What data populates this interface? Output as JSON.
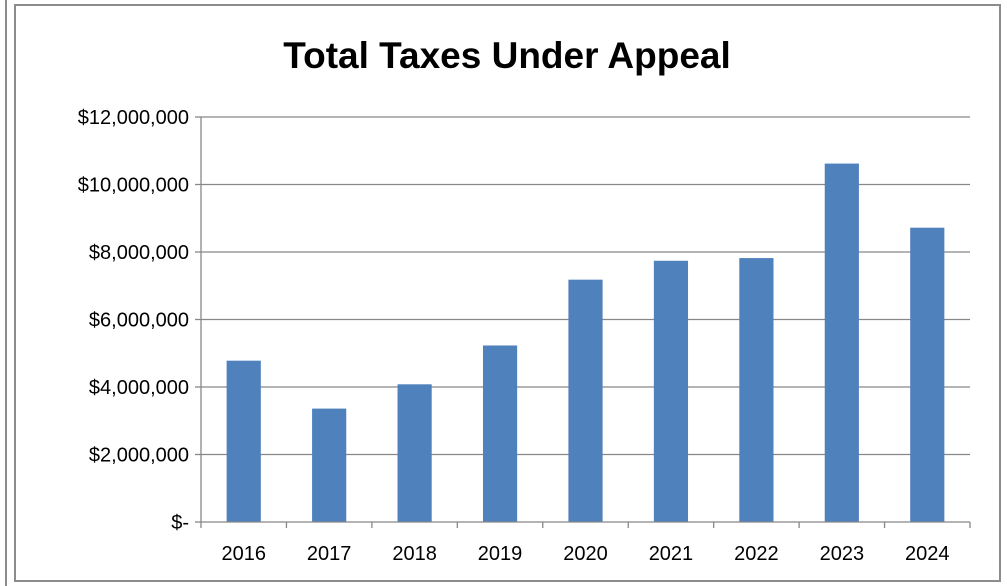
{
  "chart_data": {
    "type": "bar",
    "title": "Total Taxes Under Appeal",
    "xlabel": "",
    "ylabel": "",
    "categories": [
      "2016",
      "2017",
      "2018",
      "2019",
      "2020",
      "2021",
      "2022",
      "2023",
      "2024"
    ],
    "values": [
      4780000,
      3360000,
      4080000,
      5230000,
      7180000,
      7740000,
      7820000,
      10620000,
      8720000
    ],
    "ylim": [
      0,
      12000000
    ],
    "y_ticks": [
      0,
      2000000,
      4000000,
      6000000,
      8000000,
      10000000,
      12000000
    ],
    "y_tick_labels": [
      "$-",
      "$2,000,000",
      "$4,000,000",
      "$6,000,000",
      "$8,000,000",
      "$10,000,000",
      "$12,000,000"
    ],
    "grid": true,
    "legend": "none",
    "bar_color": "#4f81bd",
    "grid_color": "#878787"
  }
}
